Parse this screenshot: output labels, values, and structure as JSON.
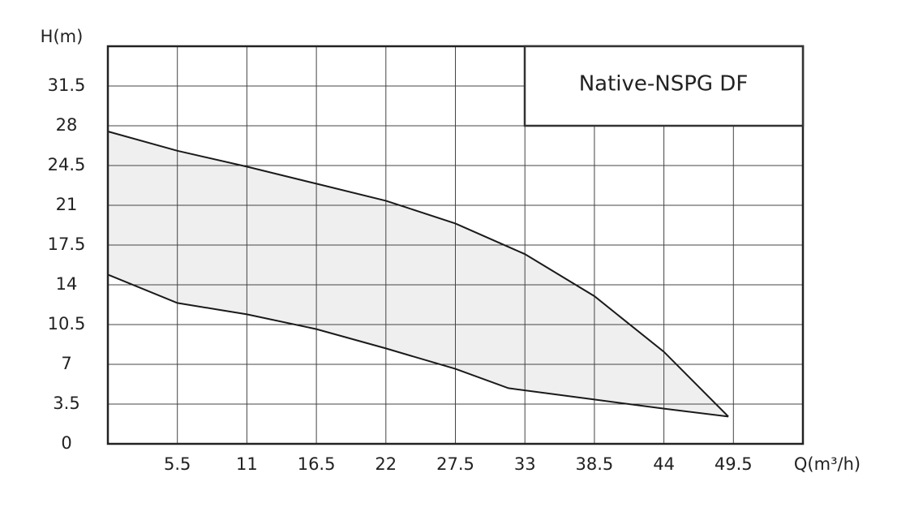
{
  "chart_data": {
    "type": "area",
    "title": "Native-NSPG DF",
    "y_label": "H(m)",
    "x_label": "Q(m³/h)",
    "xlim": [
      0,
      55
    ],
    "ylim": [
      0,
      35
    ],
    "xticks": [
      5.5,
      11,
      16.5,
      22,
      27.5,
      33,
      38.5,
      44,
      49.5
    ],
    "yticks": [
      0,
      3.5,
      7,
      10.5,
      14,
      17.5,
      21,
      24.5,
      28,
      31.5
    ],
    "grid": true,
    "fill_color": "#efefef",
    "series": [
      {
        "color": "#1a1a1a",
        "x": [
          0,
          5.5,
          11,
          16.5,
          22,
          27.5,
          33,
          38.5,
          44,
          49.1
        ],
        "values": [
          27.5,
          25.8,
          24.4,
          22.9,
          21.4,
          19.4,
          16.7,
          13.0,
          8.1,
          2.4
        ]
      },
      {
        "color": "#1a1a1a",
        "x": [
          0,
          5.5,
          11,
          16.5,
          22,
          27.5,
          31.7,
          38.5,
          44,
          49.1
        ],
        "values": [
          14.9,
          12.4,
          11.4,
          10.1,
          8.4,
          6.6,
          4.9,
          3.9,
          3.1,
          2.4
        ]
      }
    ]
  }
}
